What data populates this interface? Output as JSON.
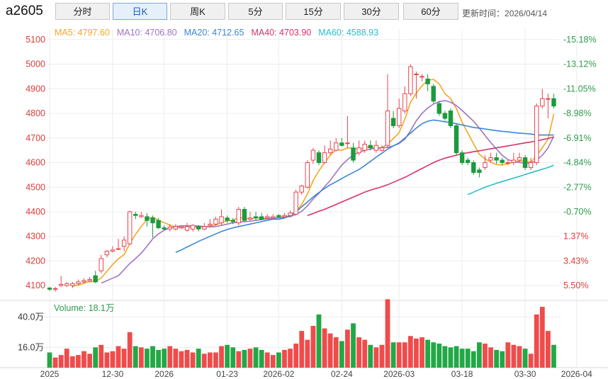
{
  "header": {
    "symbol": "a2605",
    "periods": [
      "分时",
      "日K",
      "周K",
      "5分",
      "15分",
      "30分",
      "60分"
    ],
    "active_period": 1,
    "update_label": "更新时间：",
    "update_time": "2026/04/14"
  },
  "chart_data": {
    "type": "candlestick",
    "ma_legend": [
      {
        "label": "MA5:",
        "value": "4797.60",
        "color": "#f5a623"
      },
      {
        "label": "MA10:",
        "value": "4706.80",
        "color": "#a173c4"
      },
      {
        "label": "MA20:",
        "value": "4712.65",
        "color": "#3a86d4"
      },
      {
        "label": "MA40:",
        "value": "4703.90",
        "color": "#d6336c"
      },
      {
        "label": "MA60:",
        "value": "4588.93",
        "color": "#26c0c7"
      }
    ],
    "y_ticks": [
      4100,
      4200,
      4300,
      4400,
      4500,
      4600,
      4700,
      4800,
      4900,
      5000,
      5100
    ],
    "pct_ticks": [
      "5.50%",
      "3.43%",
      "1.37%",
      "-0.70%",
      "-2.77%",
      "-4.84%",
      "-6.91%",
      "-8.98%",
      "-11.05%",
      "-13.12%",
      "-15.18%"
    ],
    "ylim": [
      4040,
      5140
    ],
    "x_labels": [
      {
        "i": 0,
        "text": "2025"
      },
      {
        "i": 11,
        "text": "12-30"
      },
      {
        "i": 20,
        "text": "2026"
      },
      {
        "i": 31,
        "text": "01-23"
      },
      {
        "i": 40,
        "text": "2026-02"
      },
      {
        "i": 51,
        "text": "02-24"
      },
      {
        "i": 61,
        "text": "2026-03"
      },
      {
        "i": 72,
        "text": "03-18"
      },
      {
        "i": 83,
        "text": "03-30"
      },
      {
        "i": 92,
        "text": "2026-04"
      }
    ],
    "candles": [
      [
        4090,
        4085,
        4095,
        4078
      ],
      [
        4085,
        4088,
        4095,
        4075
      ],
      [
        4100,
        4105,
        4140,
        4095
      ],
      [
        4100,
        4108,
        4115,
        4095
      ],
      [
        4100,
        4108,
        4115,
        4090
      ],
      [
        4108,
        4115,
        4125,
        4100
      ],
      [
        4115,
        4120,
        4130,
        4108
      ],
      [
        4120,
        4125,
        4135,
        4115
      ],
      [
        4140,
        4115,
        4160,
        4110
      ],
      [
        4160,
        4210,
        4225,
        4150
      ],
      [
        4225,
        4240,
        4245,
        4215
      ],
      [
        4240,
        4245,
        4260,
        4235
      ],
      [
        4250,
        4250,
        4290,
        4245
      ],
      [
        4260,
        4285,
        4300,
        4240
      ],
      [
        4270,
        4400,
        4405,
        4265
      ],
      [
        4390,
        4385,
        4400,
        4370
      ],
      [
        4380,
        4385,
        4400,
        4375
      ],
      [
        4380,
        4365,
        4395,
        4340
      ],
      [
        4375,
        4355,
        4385,
        4295
      ],
      [
        4365,
        4335,
        4375,
        4330
      ],
      [
        4335,
        4330,
        4345,
        4325
      ],
      [
        4330,
        4338,
        4350,
        4320
      ],
      [
        4330,
        4340,
        4350,
        4325
      ],
      [
        4335,
        4340,
        4345,
        4330
      ],
      [
        4325,
        4340,
        4355,
        4320
      ],
      [
        4330,
        4345,
        4350,
        4320
      ],
      [
        4340,
        4330,
        4345,
        4320
      ],
      [
        4330,
        4340,
        4355,
        4325
      ],
      [
        4345,
        4350,
        4370,
        4340
      ],
      [
        4350,
        4370,
        4380,
        4345
      ],
      [
        4355,
        4380,
        4410,
        4345
      ],
      [
        4375,
        4365,
        4385,
        4355
      ],
      [
        4365,
        4360,
        4375,
        4350
      ],
      [
        4355,
        4410,
        4420,
        4345
      ],
      [
        4410,
        4365,
        4420,
        4360
      ],
      [
        4370,
        4375,
        4400,
        4365
      ],
      [
        4380,
        4375,
        4400,
        4365
      ],
      [
        4380,
        4370,
        4395,
        4365
      ],
      [
        4375,
        4380,
        4390,
        4370
      ],
      [
        4375,
        4380,
        4390,
        4370
      ],
      [
        4385,
        4380,
        4390,
        4375
      ],
      [
        4380,
        4385,
        4395,
        4375
      ],
      [
        4385,
        4395,
        4405,
        4380
      ],
      [
        4390,
        4480,
        4490,
        4385
      ],
      [
        4480,
        4505,
        4510,
        4470
      ],
      [
        4500,
        4600,
        4610,
        4495
      ],
      [
        4610,
        4650,
        4660,
        4595
      ],
      [
        4640,
        4600,
        4650,
        4590
      ],
      [
        4600,
        4640,
        4670,
        4595
      ],
      [
        4640,
        4655,
        4690,
        4630
      ],
      [
        4650,
        4680,
        4700,
        4645
      ],
      [
        4680,
        4670,
        4700,
        4665
      ],
      [
        4680,
        4680,
        4790,
        4660
      ],
      [
        4660,
        4610,
        4680,
        4600
      ],
      [
        4640,
        4660,
        4690,
        4630
      ],
      [
        4650,
        4675,
        4690,
        4640
      ],
      [
        4670,
        4660,
        4690,
        4650
      ],
      [
        4650,
        4670,
        4690,
        4640
      ],
      [
        4650,
        4660,
        4670,
        4645
      ],
      [
        4670,
        4810,
        4960,
        4660
      ],
      [
        4780,
        4750,
        4810,
        4740
      ],
      [
        4750,
        4820,
        4860,
        4740
      ],
      [
        4810,
        4880,
        4910,
        4800
      ],
      [
        4880,
        4990,
        5000,
        4870
      ],
      [
        4960,
        4960,
        4970,
        4860
      ],
      [
        4950,
        4950,
        4960,
        4930
      ],
      [
        4940,
        4920,
        4960,
        4890
      ],
      [
        4910,
        4850,
        4920,
        4840
      ],
      [
        4840,
        4800,
        4850,
        4790
      ],
      [
        4800,
        4780,
        4810,
        4770
      ],
      [
        4810,
        4750,
        4820,
        4740
      ],
      [
        4750,
        4640,
        4760,
        4630
      ],
      [
        4640,
        4600,
        4650,
        4590
      ],
      [
        4610,
        4600,
        4620,
        4590
      ],
      [
        4600,
        4560,
        4610,
        4550
      ],
      [
        4570,
        4560,
        4580,
        4540
      ],
      [
        4580,
        4600,
        4630,
        4570
      ],
      [
        4610,
        4620,
        4640,
        4600
      ],
      [
        4620,
        4610,
        4640,
        4595
      ],
      [
        4610,
        4600,
        4620,
        4590
      ],
      [
        4600,
        4600,
        4610,
        4590
      ],
      [
        4600,
        4610,
        4640,
        4590
      ],
      [
        4610,
        4620,
        4640,
        4600
      ],
      [
        4620,
        4580,
        4630,
        4570
      ],
      [
        4580,
        4600,
        4620,
        4570
      ],
      [
        4600,
        4830,
        4840,
        4590
      ],
      [
        4830,
        4860,
        4900,
        4820
      ],
      [
        4860,
        4860,
        4880,
        4780
      ],
      [
        4860,
        4830,
        4880,
        4820
      ]
    ],
    "ma5": [
      null,
      null,
      null,
      null,
      4097,
      4102,
      4110,
      4117,
      4116,
      4131,
      4158,
      4185,
      4209,
      4226,
      4270,
      4309,
      4340,
      4370,
      4378,
      4365,
      4356,
      4346,
      4339,
      4335,
      4336,
      4339,
      4338,
      4339,
      4341,
      4346,
      4357,
      4363,
      4366,
      4377,
      4374,
      4370,
      4376,
      4373,
      4373,
      4374,
      4377,
      4379,
      4384,
      4404,
      4429,
      4473,
      4527,
      4567,
      4600,
      4630,
      4653,
      4650,
      4660,
      4658,
      4653,
      4660,
      4665,
      4660,
      4661,
      4675,
      4698,
      4722,
      4776,
      4846,
      4882,
      4912,
      4935,
      4938,
      4920,
      4880,
      4860,
      4820,
      4764,
      4720,
      4676,
      4634,
      4615,
      4602,
      4592,
      4590,
      4596,
      4602,
      4606,
      4606,
      4602,
      4628,
      4660,
      4696,
      4797
    ],
    "ma10": [
      null,
      null,
      null,
      null,
      null,
      null,
      null,
      null,
      null,
      4110,
      4120,
      4130,
      4140,
      4165,
      4190,
      4210,
      4232,
      4260,
      4290,
      4310,
      4325,
      4335,
      4340,
      4343,
      4343,
      4343,
      4342,
      4340,
      4338,
      4340,
      4345,
      4350,
      4355,
      4358,
      4360,
      4362,
      4365,
      4368,
      4371,
      4374,
      4376,
      4378,
      4380,
      4390,
      4402,
      4424,
      4452,
      4475,
      4502,
      4528,
      4560,
      4590,
      4612,
      4630,
      4642,
      4650,
      4655,
      4658,
      4660,
      4662,
      4668,
      4678,
      4695,
      4730,
      4770,
      4800,
      4822,
      4838,
      4848,
      4852,
      4845,
      4832,
      4812,
      4790,
      4768,
      4740,
      4710,
      4682,
      4655,
      4630,
      4612,
      4605,
      4600,
      4598,
      4598,
      4610,
      4630,
      4660,
      4707
    ],
    "ma20": [
      null,
      null,
      null,
      null,
      null,
      null,
      null,
      null,
      null,
      null,
      null,
      null,
      null,
      null,
      null,
      null,
      null,
      null,
      null,
      null,
      null,
      null,
      4235,
      4245,
      4257,
      4268,
      4280,
      4290,
      4300,
      4310,
      4320,
      4328,
      4335,
      4340,
      4345,
      4350,
      4355,
      4360,
      4365,
      4370,
      4370,
      4375,
      4385,
      4400,
      4420,
      4440,
      4460,
      4478,
      4495,
      4510,
      4522,
      4535,
      4548,
      4560,
      4572,
      4588,
      4605,
      4622,
      4638,
      4655,
      4668,
      4680,
      4700,
      4720,
      4740,
      4758,
      4768,
      4773,
      4770,
      4766,
      4763,
      4758,
      4753,
      4748,
      4743,
      4740,
      4737,
      4733,
      4730,
      4727,
      4725,
      4722,
      4720,
      4718,
      4716,
      4712,
      4712,
      4712,
      4712
    ],
    "ma40": [
      null,
      null,
      null,
      null,
      null,
      null,
      null,
      null,
      null,
      null,
      null,
      null,
      null,
      null,
      null,
      null,
      null,
      null,
      null,
      null,
      null,
      null,
      null,
      null,
      null,
      null,
      null,
      null,
      null,
      null,
      null,
      null,
      null,
      null,
      null,
      null,
      null,
      null,
      null,
      null,
      null,
      null,
      null,
      null,
      null,
      4385,
      4393,
      4402,
      4410,
      4420,
      4430,
      4440,
      4450,
      4460,
      4470,
      4480,
      4488,
      4495,
      4502,
      4510,
      4520,
      4530,
      4540,
      4552,
      4564,
      4576,
      4588,
      4600,
      4610,
      4618,
      4624,
      4630,
      4636,
      4640,
      4644,
      4648,
      4652,
      4656,
      4660,
      4664,
      4668,
      4672,
      4676,
      4680,
      4684,
      4688,
      4693,
      4698,
      4704
    ],
    "ma60": [
      null,
      null,
      null,
      null,
      null,
      null,
      null,
      null,
      null,
      null,
      null,
      null,
      null,
      null,
      null,
      null,
      null,
      null,
      null,
      null,
      null,
      null,
      null,
      null,
      null,
      null,
      null,
      null,
      null,
      null,
      null,
      null,
      null,
      null,
      null,
      null,
      null,
      null,
      null,
      null,
      null,
      null,
      null,
      null,
      null,
      null,
      null,
      null,
      null,
      null,
      null,
      null,
      null,
      null,
      null,
      null,
      null,
      null,
      null,
      null,
      null,
      null,
      null,
      null,
      null,
      null,
      null,
      null,
      null,
      null,
      null,
      null,
      null,
      4470,
      4480,
      4490,
      4500,
      4508,
      4516,
      4523,
      4530,
      4537,
      4544,
      4552,
      4559,
      4566,
      4573,
      4580,
      4589
    ],
    "volume": {
      "label": "Volume:",
      "current": "18.1万",
      "y_ticks": [
        {
          "value": 400000,
          "label": "40.0万"
        },
        {
          "value": 160000,
          "label": "16.0万"
        }
      ],
      "ylim": [
        0,
        520000
      ],
      "values": [
        120000,
        80000,
        100000,
        150000,
        90000,
        100000,
        130000,
        110000,
        160000,
        180000,
        120000,
        130000,
        170000,
        150000,
        280000,
        170000,
        160000,
        150000,
        170000,
        140000,
        150000,
        170000,
        150000,
        130000,
        140000,
        120000,
        150000,
        110000,
        120000,
        120000,
        170000,
        180000,
        160000,
        130000,
        140000,
        150000,
        160000,
        140000,
        120000,
        100000,
        120000,
        140000,
        150000,
        190000,
        290000,
        220000,
        330000,
        420000,
        310000,
        270000,
        240000,
        210000,
        300000,
        350000,
        240000,
        220000,
        180000,
        160000,
        180000,
        540000,
        200000,
        200000,
        200000,
        250000,
        230000,
        240000,
        220000,
        200000,
        190000,
        170000,
        160000,
        170000,
        150000,
        150000,
        130000,
        200000,
        190000,
        160000,
        140000,
        130000,
        200000,
        180000,
        170000,
        150000,
        110000,
        420000,
        480000,
        290000,
        180000
      ]
    }
  }
}
